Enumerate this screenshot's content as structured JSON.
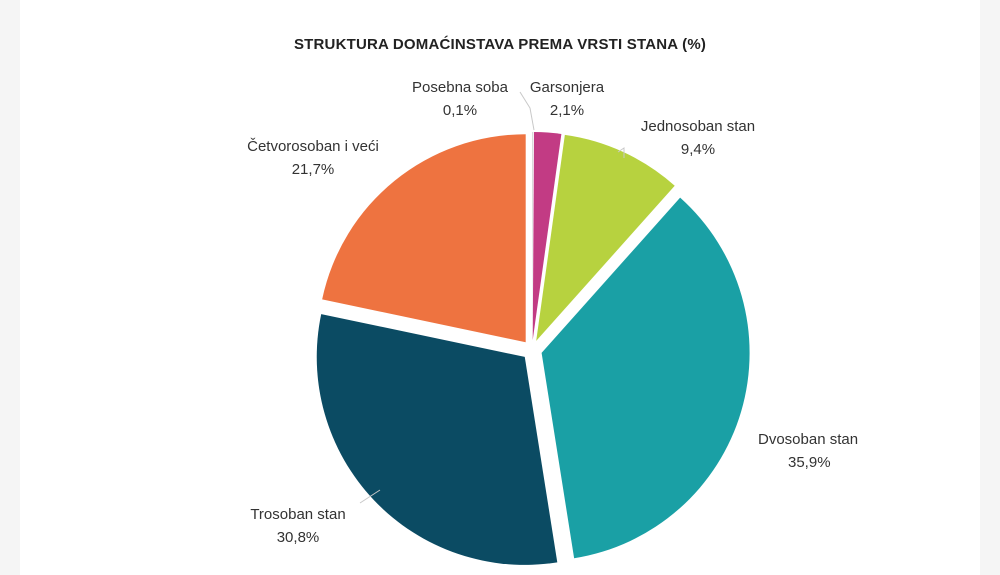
{
  "chart_data": {
    "type": "pie",
    "title": "STRUKTURA DOMAĆINSTAVA PREMA VRSTI STANA (%)",
    "slices": [
      {
        "name": "Posebna soba",
        "value": 0.1,
        "value_label": "0,1%",
        "color": "#d9d9d9"
      },
      {
        "name": "Garsonjera",
        "value": 2.1,
        "value_label": "2,1%",
        "color": "#c23b84"
      },
      {
        "name": "Jednosoban stan",
        "value": 9.4,
        "value_label": "9,4%",
        "color": "#b7d23f"
      },
      {
        "name": "Dvosoban stan",
        "value": 35.9,
        "value_label": "35,9%",
        "color": "#1aa0a5"
      },
      {
        "name": "Trosoban stan",
        "value": 30.8,
        "value_label": "30,8%",
        "color": "#0b4b63"
      },
      {
        "name": "Četvorosoban i veći",
        "value": 21.7,
        "value_label": "21,7%",
        "color": "#ee7340"
      }
    ],
    "legend": "none",
    "grid": false
  }
}
